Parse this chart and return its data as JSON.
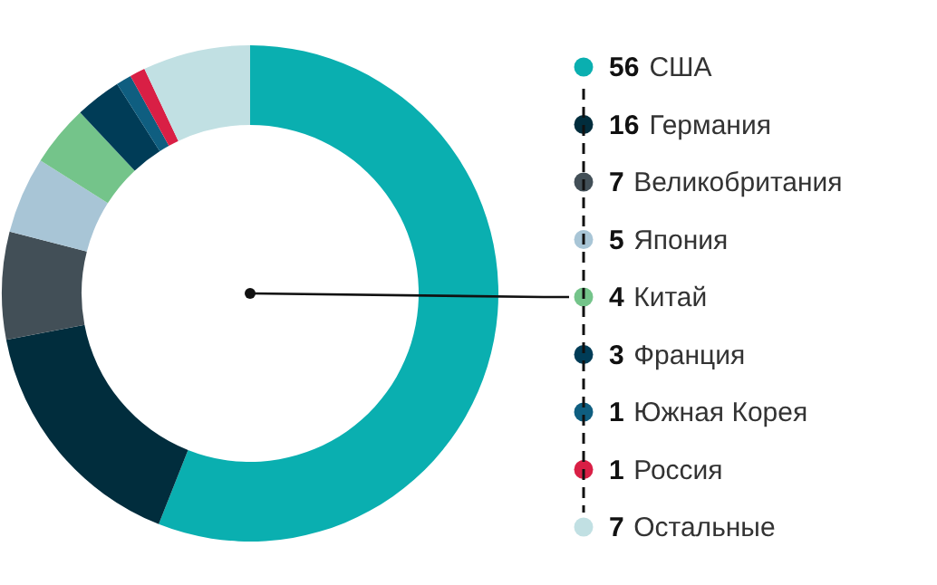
{
  "chart_data": {
    "type": "donut",
    "categories": [
      "США",
      "Германия",
      "Великобритания",
      "Япония",
      "Китай",
      "Франция",
      "Южная Корея",
      "Россия",
      "Остальные"
    ],
    "values": [
      56,
      16,
      7,
      5,
      4,
      3,
      1,
      1,
      7
    ],
    "colors": [
      "#0aafb0",
      "#012d3d",
      "#424f57",
      "#a8c5d6",
      "#74c48a",
      "#003c57",
      "#0f5e80",
      "#d91f45",
      "#c1e0e3"
    ],
    "data_labels": true,
    "legend": "right"
  }
}
